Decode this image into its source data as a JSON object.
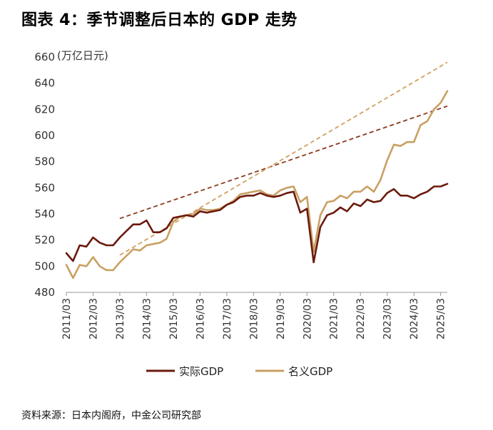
{
  "figure_title": "图表 4：季节调整后日本的 GDP 走势",
  "source_note": "资料来源：日本内阁府，中金公司研究部",
  "colors": {
    "real": "#6b1a0d",
    "nominal": "#c9a063",
    "real_trend": "#8b3a1e",
    "nominal_trend": "#d0a060",
    "axis": "#999999"
  },
  "chart_data": {
    "type": "line",
    "title": "",
    "xlabel": "",
    "ylabel": "(万亿日元)",
    "ylim": [
      480,
      660
    ],
    "yticks": [
      480,
      500,
      520,
      540,
      560,
      580,
      600,
      620,
      640,
      660
    ],
    "x_tick_labels": [
      "2011/03",
      "2012/03",
      "2013/03",
      "2014/03",
      "2015/03",
      "2016/03",
      "2017/03",
      "2018/03",
      "2019/03",
      "2020/03",
      "2021/03",
      "2022/03",
      "2023/03",
      "2024/03",
      "2025/03"
    ],
    "x_start": "2011Q1",
    "legend_position": "bottom",
    "grid": false,
    "series": [
      {
        "name": "实际GDP",
        "values": [
          510,
          504,
          516,
          515,
          522,
          518,
          516,
          516,
          522,
          527,
          532,
          532,
          535,
          526,
          526,
          529,
          537,
          538,
          539,
          538,
          542,
          541,
          542,
          543,
          547,
          549,
          553,
          554,
          554,
          556,
          554,
          553,
          554,
          556,
          557,
          541,
          544,
          503,
          530,
          539,
          541,
          545,
          542,
          548,
          546,
          551,
          549,
          550,
          556,
          559,
          554,
          554,
          552,
          555,
          557,
          561,
          561,
          563
        ]
      },
      {
        "name": "名义GDP",
        "values": [
          501,
          491,
          501,
          500,
          507,
          500,
          497,
          497,
          503,
          508,
          513,
          512,
          516,
          517,
          518,
          521,
          534,
          538,
          539,
          540,
          544,
          543,
          543,
          544,
          547,
          550,
          555,
          556,
          557,
          558,
          555,
          554,
          558,
          560,
          561,
          549,
          553,
          511,
          539,
          549,
          550,
          554,
          552,
          557,
          557,
          561,
          557,
          566,
          581,
          593,
          592,
          595,
          595,
          608,
          611,
          620,
          625,
          634
        ]
      }
    ],
    "trendlines": [
      {
        "series": "实际GDP",
        "x_from": "2013Q1",
        "y_from": 536.5,
        "x_to": "2025Q2",
        "y_to": 622.5
      },
      {
        "series": "名义GDP",
        "x_from": "2013Q1",
        "y_from": 508.5,
        "x_to": "2025Q2",
        "y_to": 656
      }
    ]
  }
}
